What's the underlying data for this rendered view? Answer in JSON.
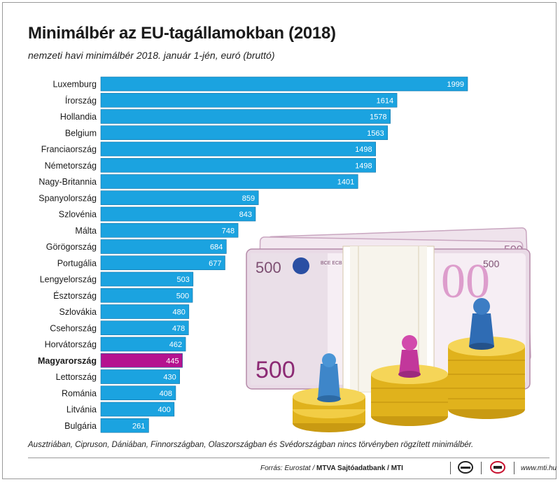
{
  "header": {
    "title": "Minimálbér az EU-tagállamokban (2018)",
    "subtitle": "nemzeti havi minimálbér 2018. január 1-jén, euró (bruttó)"
  },
  "chart_data": {
    "type": "bar",
    "orientation": "horizontal",
    "title": "Minimálbér az EU-tagállamokban (2018)",
    "subtitle": "nemzeti havi minimálbér 2018. január 1-jén, euró (bruttó)",
    "categories": [
      "Luxemburg",
      "Írország",
      "Hollandia",
      "Belgium",
      "Franciaország",
      "Németország",
      "Nagy-Britannia",
      "Spanyolország",
      "Szlovénia",
      "Málta",
      "Görögország",
      "Portugália",
      "Lengyelország",
      "Észtország",
      "Szlovákia",
      "Csehország",
      "Horvátország",
      "Magyarország",
      "Lettország",
      "Románia",
      "Litvánia",
      "Bulgária"
    ],
    "values": [
      1999,
      1614,
      1578,
      1563,
      1498,
      1498,
      1401,
      859,
      843,
      748,
      684,
      677,
      503,
      500,
      480,
      478,
      462,
      445,
      430,
      408,
      400,
      261
    ],
    "highlight": "Magyarország",
    "colors": {
      "bar": "#1ba3e0",
      "highlight": "#b5128f",
      "bar_border": "#ffffff"
    },
    "grid": false,
    "legend": "none",
    "data_labels": true
  },
  "footnote": "Ausztriában, Cipruson, Dániában, Finnországban, Olaszországban és Svédországban nincs törvényben rögzített minimálbér.",
  "footer": {
    "source_prefix": "Forrás: Eurostat / ",
    "source_bold": "MTVA Sajtóadatbank / MTI",
    "logos": [
      "mtva-logo",
      "mti-logo"
    ],
    "website": "www.mti.hu"
  },
  "illustration": {
    "description_icons": [
      "banknote-500-euro-bundles",
      "gold-coin-stacks",
      "game-pawn-figures"
    ],
    "banknote_text": "500",
    "banknote_code": "BCE ECB"
  }
}
